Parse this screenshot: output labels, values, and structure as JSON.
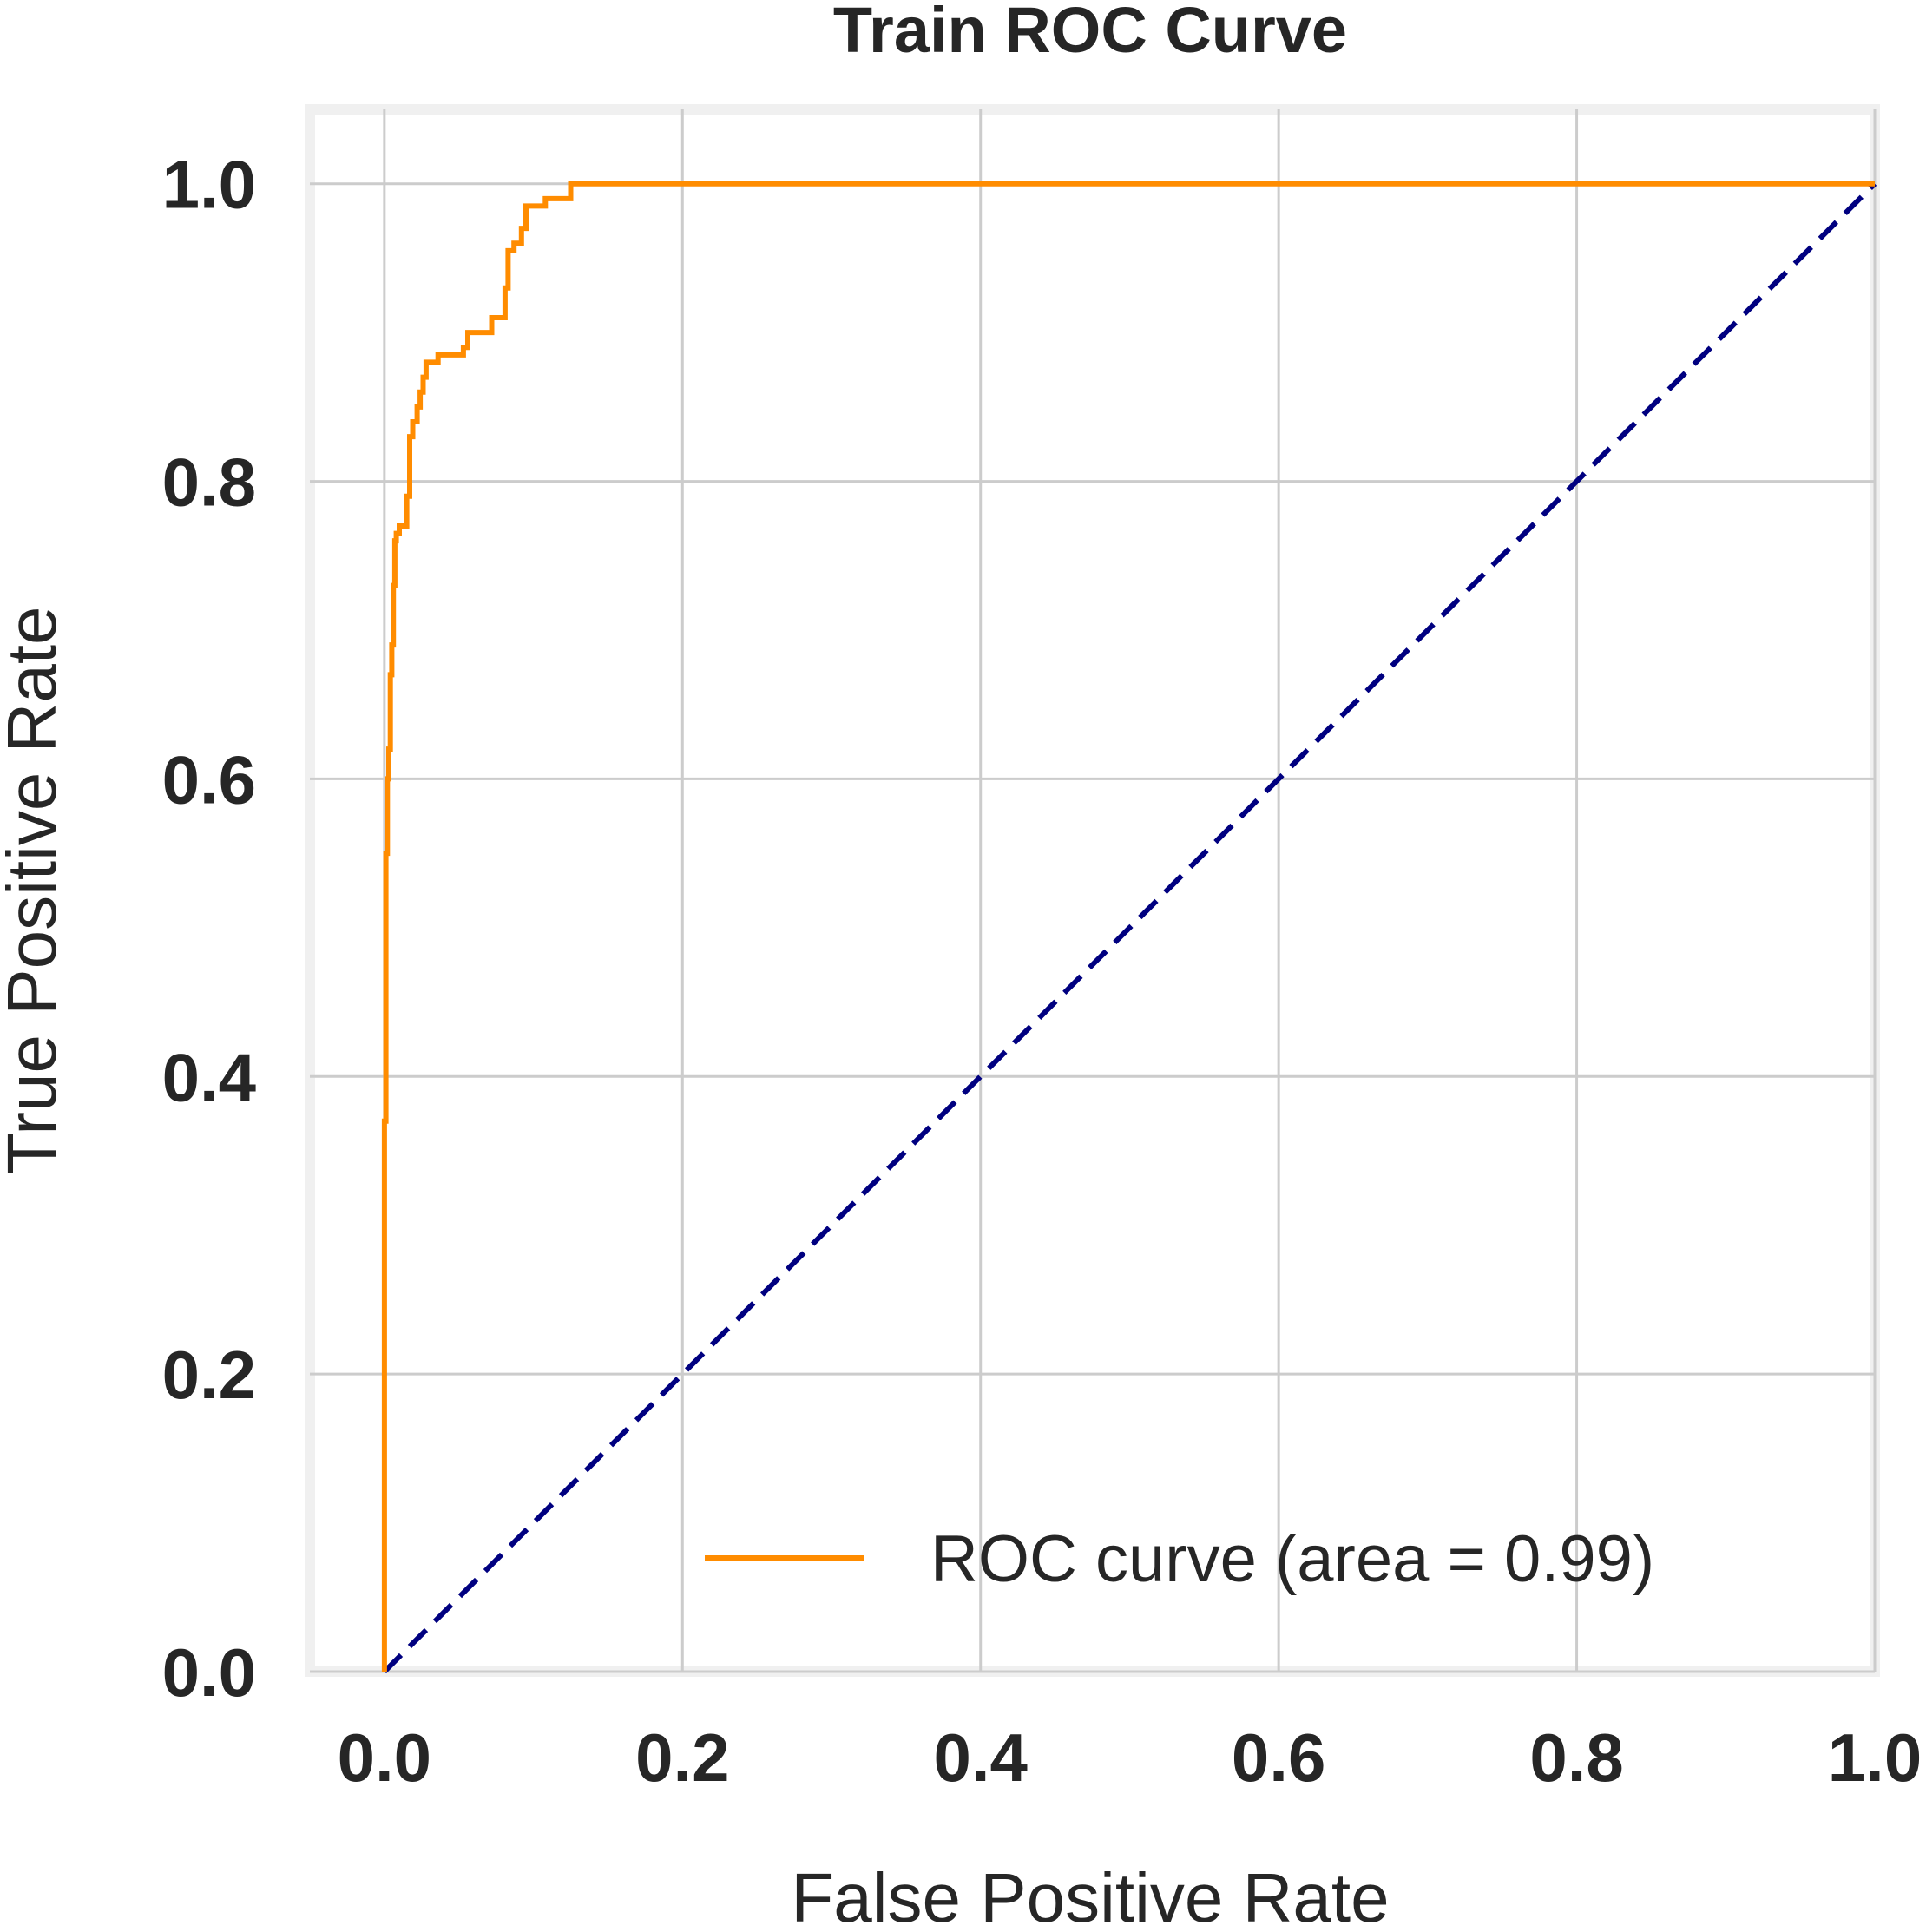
{
  "chart_data": {
    "type": "line",
    "title": "Train ROC Curve",
    "xlabel": "False Positive Rate",
    "ylabel": "True Positive Rate",
    "xlim": [
      -0.05,
      1.0
    ],
    "ylim": [
      0.0,
      1.05
    ],
    "xticks": [
      "0.0",
      "0.2",
      "0.4",
      "0.6",
      "0.8",
      "1.0"
    ],
    "yticks": [
      "0.0",
      "0.2",
      "0.4",
      "0.6",
      "0.8",
      "1.0"
    ],
    "grid": true,
    "legend_position": "lower right",
    "series": [
      {
        "name": "ROC curve (area = 0.99)",
        "color": "#ff8c00",
        "style": "solid",
        "x": [
          0.0,
          0.0,
          0.001,
          0.001,
          0.002,
          0.002,
          0.003,
          0.003,
          0.004,
          0.004,
          0.005,
          0.005,
          0.006,
          0.006,
          0.007,
          0.007,
          0.008,
          0.008,
          0.01,
          0.01,
          0.015,
          0.015,
          0.017,
          0.017,
          0.019,
          0.019,
          0.022,
          0.022,
          0.024,
          0.024,
          0.026,
          0.026,
          0.028,
          0.028,
          0.036,
          0.036,
          0.053,
          0.053,
          0.056,
          0.056,
          0.072,
          0.072,
          0.081,
          0.081,
          0.083,
          0.083,
          0.087,
          0.087,
          0.092,
          0.092,
          0.095,
          0.095,
          0.108,
          0.108,
          0.125,
          0.125,
          1.0
        ],
        "y": [
          0.0,
          0.37,
          0.37,
          0.55,
          0.55,
          0.6,
          0.6,
          0.62,
          0.62,
          0.67,
          0.67,
          0.69,
          0.69,
          0.73,
          0.73,
          0.76,
          0.76,
          0.765,
          0.765,
          0.77,
          0.77,
          0.79,
          0.79,
          0.83,
          0.83,
          0.84,
          0.84,
          0.85,
          0.85,
          0.86,
          0.86,
          0.87,
          0.87,
          0.88,
          0.88,
          0.885,
          0.885,
          0.89,
          0.89,
          0.9,
          0.9,
          0.91,
          0.91,
          0.93,
          0.93,
          0.955,
          0.955,
          0.96,
          0.96,
          0.97,
          0.97,
          0.985,
          0.985,
          0.99,
          0.99,
          1.0,
          1.0
        ]
      },
      {
        "color": "#000080",
        "style": "dashed",
        "x": [
          0.0,
          1.0
        ],
        "y": [
          0.0,
          1.0
        ]
      }
    ],
    "legend": {
      "label": "ROC curve (area = 0.99)",
      "color": "#ff8c00"
    },
    "colors": {
      "frame": "#f0f0f0",
      "grid": "#cccccc",
      "text": "#262626",
      "background": "#ffffff"
    }
  }
}
